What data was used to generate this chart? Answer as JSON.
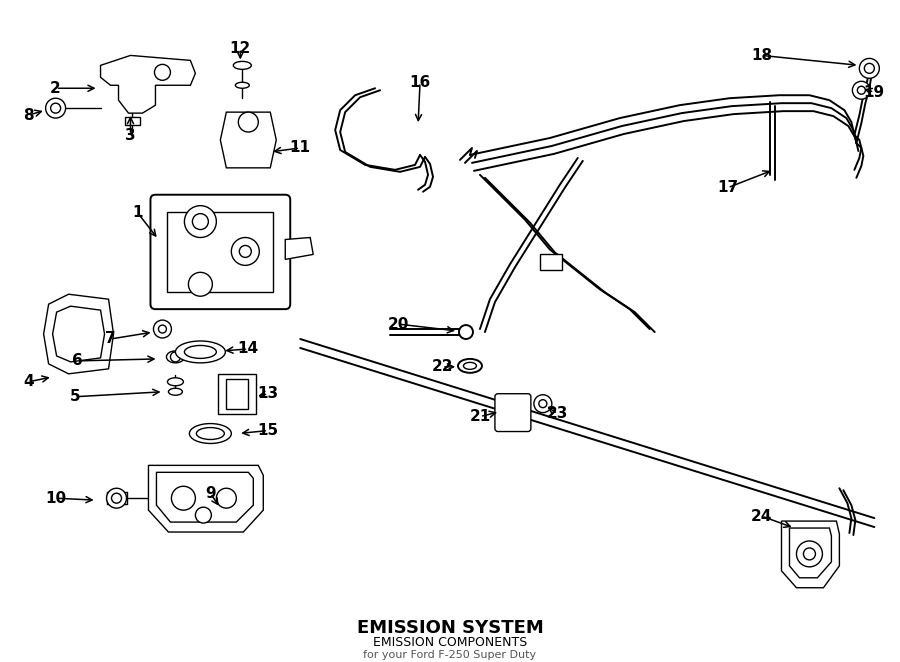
{
  "bg_color": "#ffffff",
  "line_color": "#000000",
  "text_color": "#000000",
  "fig_width": 9.0,
  "fig_height": 6.62,
  "dpi": 100,
  "title": "EMISSION SYSTEM",
  "subtitle": "EMISSION COMPONENTS",
  "subtitle2": "for your Ford F-250 Super Duty"
}
